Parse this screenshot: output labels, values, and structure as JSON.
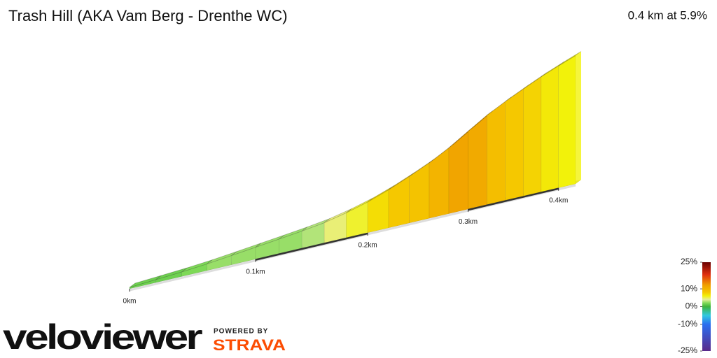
{
  "chart_data": {
    "type": "profile3d",
    "title": "Trash Hill (AKA Vam Berg - Drenthe WC)",
    "summary": "0.4 km at 5.9%",
    "x": [
      0,
      0.02,
      0.04,
      0.06,
      0.08,
      0.1,
      0.12,
      0.14,
      0.16,
      0.18,
      0.2,
      0.22,
      0.24,
      0.26,
      0.28,
      0.3,
      0.32,
      0.34,
      0.36,
      0.38,
      0.4,
      0.42
    ],
    "values": [
      0,
      0.3,
      0.6,
      1.0,
      1.5,
      2.0,
      2.5,
      3.0,
      3.6,
      4.5,
      5.6,
      7.0,
      8.6,
      10.3,
      12.3,
      14.6,
      16.8,
      18.6,
      20.2,
      21.7,
      23.0,
      24.2
    ],
    "xlim": [
      0,
      0.42
    ],
    "xticks": [
      {
        "value": 0,
        "label": "0km"
      },
      {
        "value": 0.1,
        "label": "0.1km"
      },
      {
        "value": 0.2,
        "label": "0.2km"
      },
      {
        "value": 0.3,
        "label": "0.3km"
      },
      {
        "value": 0.4,
        "label": "0.4km"
      }
    ],
    "colorbar": {
      "lim": [
        -25,
        25
      ],
      "ticks": [
        {
          "value": 25,
          "label": "25%"
        },
        {
          "value": 10,
          "label": "10%"
        },
        {
          "value": 0,
          "label": "0%"
        },
        {
          "value": -10,
          "label": "-10%"
        },
        {
          "value": -25,
          "label": "-25%"
        }
      ],
      "stops": [
        {
          "value": -25,
          "color": "#5a2a8a"
        },
        {
          "value": -10,
          "color": "#2a6ef0"
        },
        {
          "value": -5,
          "color": "#30c8e0"
        },
        {
          "value": 0,
          "color": "#3cb43c"
        },
        {
          "value": 2,
          "color": "#7ed957"
        },
        {
          "value": 4,
          "color": "#e6ee9a"
        },
        {
          "value": 6,
          "color": "#f2f20a"
        },
        {
          "value": 8,
          "color": "#f5c800"
        },
        {
          "value": 12,
          "color": "#f0a000"
        },
        {
          "value": 18,
          "color": "#e03010"
        },
        {
          "value": 25,
          "color": "#6a0000"
        }
      ]
    }
  },
  "branding": {
    "logo": "veloviewer",
    "powered": "POWERED BY",
    "strava": "STRAVA"
  }
}
